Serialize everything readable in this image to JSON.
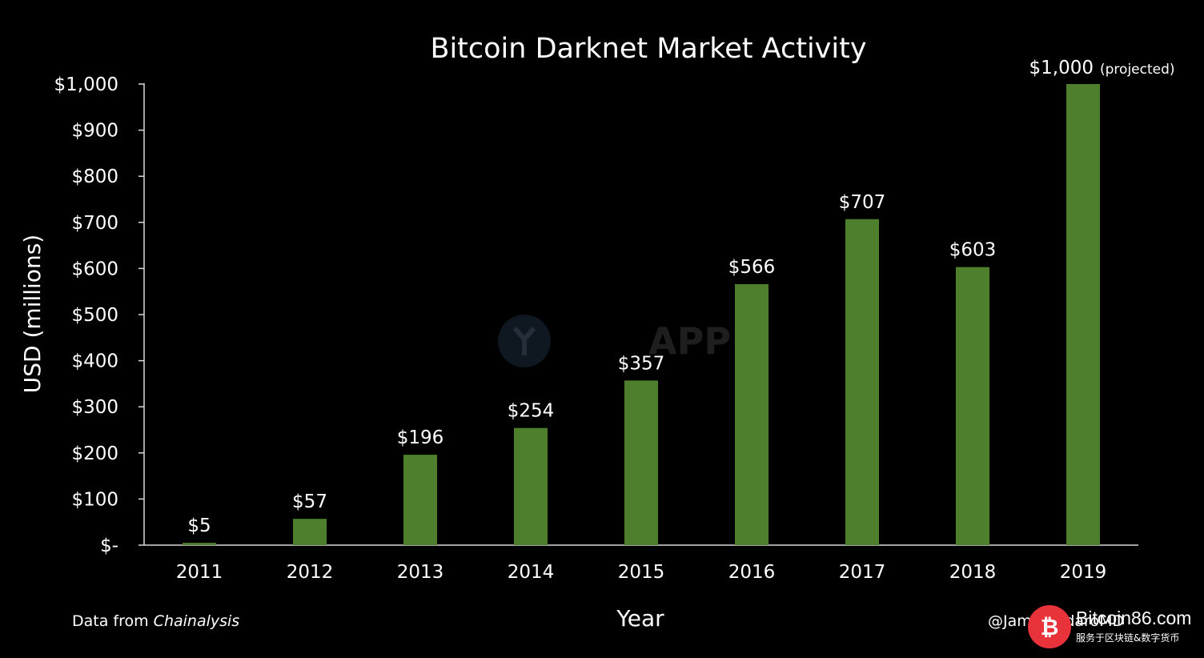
{
  "chart_data": {
    "type": "bar",
    "title": "Bitcoin Darknet Market Activity",
    "xlabel": "Year",
    "ylabel": "USD (millions)",
    "categories": [
      "2011",
      "2012",
      "2013",
      "2014",
      "2015",
      "2016",
      "2017",
      "2018",
      "2019"
    ],
    "values": [
      5,
      57,
      196,
      254,
      357,
      566,
      707,
      603,
      1000
    ],
    "data_labels": [
      "$5",
      "$57",
      "$196",
      "$254",
      "$357",
      "$566",
      "$707",
      "$603",
      "$1,000"
    ],
    "projected_note": "(projected)",
    "ylim": [
      0,
      1000
    ],
    "yticks": [
      0,
      100,
      200,
      300,
      400,
      500,
      600,
      700,
      800,
      900,
      1000
    ],
    "ytick_labels": [
      "$-",
      "$100",
      "$200",
      "$300",
      "$400",
      "$500",
      "$600",
      "$700",
      "$800",
      "$900",
      "$1,000"
    ],
    "grid": false,
    "legend": "none",
    "bar_color": "#4e7f2c",
    "background": "#000000"
  },
  "footer": {
    "source_prefix": "Data from ",
    "source_name": "Chainalysis",
    "credit": "@JamesTodaroMD"
  },
  "watermarks": {
    "center_text": "APP",
    "site_name": "Bitcoin86.com",
    "site_tagline": "服务于区块链&数字货币",
    "logo_color": "#e8333a"
  }
}
